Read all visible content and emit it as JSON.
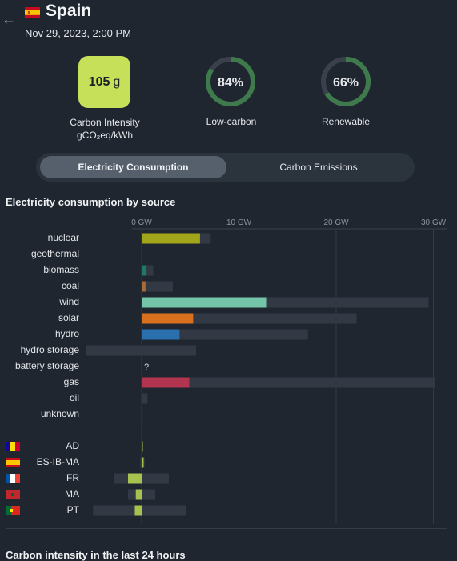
{
  "header": {
    "back_label": "←",
    "zone_name": "Spain",
    "datetime": "Nov 29, 2023, 2:00 PM"
  },
  "kpis": {
    "carbon_intensity": {
      "value": "105",
      "unit": "g",
      "label_line1": "Carbon Intensity",
      "label_line2": "gCO₂eq/kWh",
      "color": "#c6e05a"
    },
    "low_carbon": {
      "value": "84%",
      "fraction": 0.84,
      "label": "Low-carbon",
      "color": "#3f7a4c"
    },
    "renewable": {
      "value": "66%",
      "fraction": 0.66,
      "label": "Renewable",
      "color": "#3f7a4c"
    }
  },
  "tabs": {
    "active": "Electricity Consumption",
    "inactive": "Carbon Emissions"
  },
  "section_title": "Electricity consumption by source",
  "bottom_title_partial": "Carbon intensity in the last 24 hours",
  "chart_data": {
    "type": "bar",
    "title": "Electricity consumption by source",
    "x_unit": "GW",
    "xlim": [
      -5.7,
      31
    ],
    "ticks": [
      {
        "value": 0,
        "label": "0 GW"
      },
      {
        "value": 10,
        "label": "10 GW"
      },
      {
        "value": 20,
        "label": "20 GW"
      },
      {
        "value": 30,
        "label": "30 GW"
      }
    ],
    "sources": [
      {
        "name": "nuclear",
        "value": 6.0,
        "capacity": 7.1,
        "color": "#a0a519"
      },
      {
        "name": "geothermal",
        "value": 0,
        "capacity": 0,
        "color": "#9b6b3f"
      },
      {
        "name": "biomass",
        "value": 0.5,
        "capacity": 1.2,
        "color": "#1e7a66"
      },
      {
        "name": "coal",
        "value": 0.4,
        "capacity": 3.2,
        "color": "#a86c32"
      },
      {
        "name": "wind",
        "value": 12.8,
        "capacity": 29.5,
        "color": "#73c4a8"
      },
      {
        "name": "solar",
        "value": 5.3,
        "capacity": 22.1,
        "color": "#d9701e"
      },
      {
        "name": "hydro",
        "value": 3.9,
        "capacity": 17.1,
        "color": "#2a6fae"
      },
      {
        "name": "hydro storage",
        "value": 0,
        "capacity": 5.6,
        "capacity_min": -5.7,
        "color": "#1f4d7a"
      },
      {
        "name": "battery storage",
        "value": null,
        "capacity": 0,
        "label": "?",
        "color": "#777777"
      },
      {
        "name": "gas",
        "value": 4.9,
        "capacity": 30.2,
        "color": "#b2344e"
      },
      {
        "name": "oil",
        "value": 0,
        "capacity": 0.6,
        "color": "#7a4d2b"
      },
      {
        "name": "unknown",
        "value": 0,
        "capacity": 0.1,
        "color": "#888888"
      }
    ],
    "exchanges": [
      {
        "zone": "AD",
        "value": 0.05,
        "cap_min": 0,
        "cap_max": 0.1,
        "flag": "ad"
      },
      {
        "zone": "ES-IB-MA",
        "value": 0.2,
        "cap_min": -0.15,
        "cap_max": 0.3,
        "flag": "es"
      },
      {
        "zone": "FR",
        "value": -1.4,
        "cap_min": -2.8,
        "cap_max": 2.8,
        "flag": "fr"
      },
      {
        "zone": "MA",
        "value": -0.6,
        "cap_min": -1.4,
        "cap_max": 1.4,
        "flag": "ma"
      },
      {
        "zone": "PT",
        "value": -0.7,
        "cap_min": -5.0,
        "cap_max": 4.6,
        "flag": "pt"
      }
    ],
    "bar_color_exchange": "#a7c24f",
    "capacity_color": "#323944"
  }
}
